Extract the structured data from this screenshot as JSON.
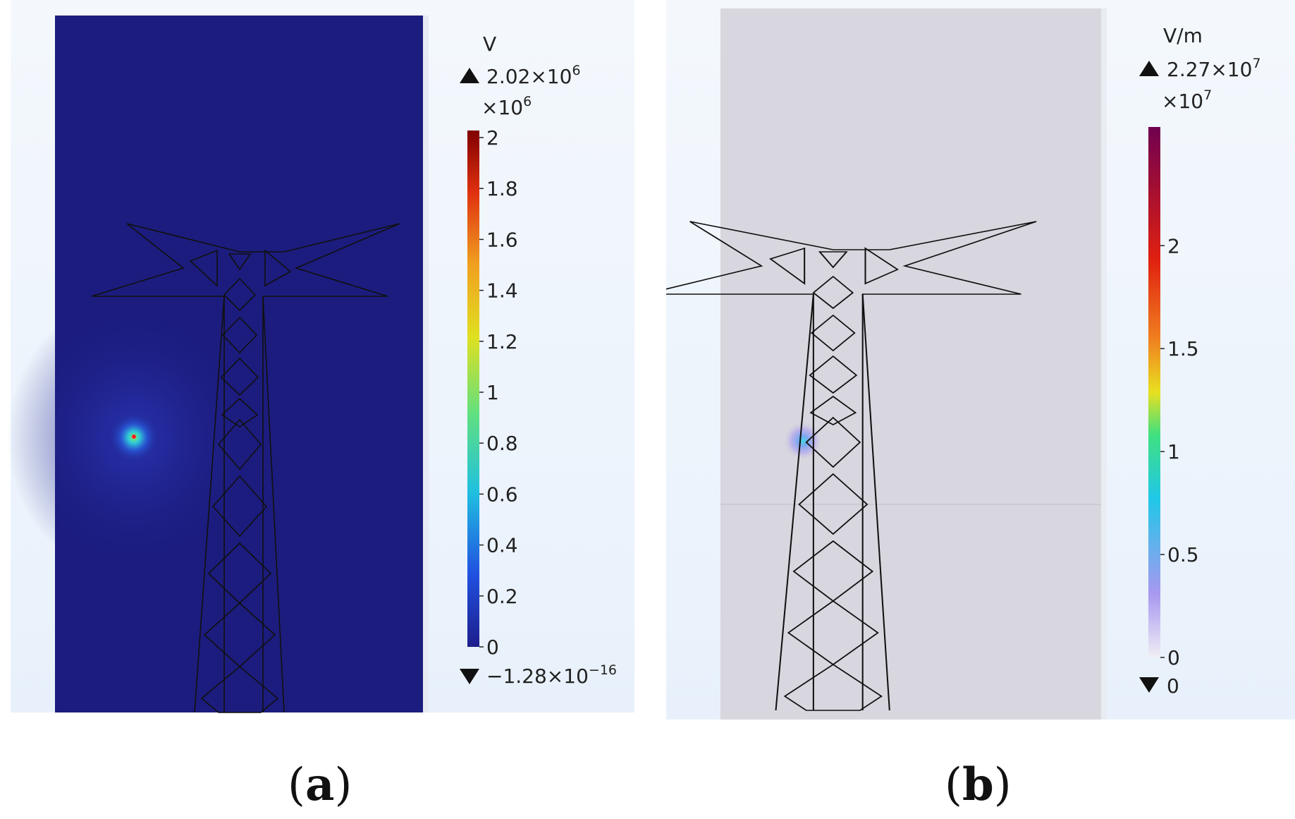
{
  "panels": [
    {
      "id": "a",
      "caption_letter": "a",
      "unit": "V",
      "max_marker": "2.02×10",
      "max_marker_exp": "6",
      "scale_factor": "×10",
      "scale_factor_exp": "6",
      "min_marker": "−1.28×10",
      "min_marker_exp": "−16",
      "field_bg": "#1c1c7e",
      "hotspot_color": "#2fe0d0"
    },
    {
      "id": "b",
      "caption_letter": "b",
      "unit": "V/m",
      "max_marker": "2.27×10",
      "max_marker_exp": "7",
      "scale_factor": "×10",
      "scale_factor_exp": "7",
      "min_marker": "0",
      "min_marker_exp": "",
      "field_bg": "#d8d6de",
      "hotspot_color": "#9a90e0"
    }
  ],
  "chart_data": [
    {
      "type": "heatmap",
      "title": "",
      "quantity_unit": "V",
      "colorscale": [
        "#1e1e8c",
        "#2050e0",
        "#20c0e0",
        "#60e080",
        "#e0e020",
        "#f0a020",
        "#e03010",
        "#800000"
      ],
      "colorbar_range": [
        0,
        2
      ],
      "colorbar_ticks": [
        0,
        0.2,
        0.4,
        0.6,
        0.8,
        1,
        1.2,
        1.4,
        1.6,
        1.8,
        2
      ],
      "colorbar_tick_labels": [
        "0",
        "0.2",
        "0.4",
        "0.6",
        "0.8",
        "1",
        "1.2",
        "1.4",
        "1.6",
        "1.8",
        "2"
      ],
      "colorbar_multiplier": 1000000,
      "max_value": 2020000,
      "min_value": -1.28e-16
    },
    {
      "type": "heatmap",
      "title": "",
      "quantity_unit": "V/m",
      "colorscale": [
        "#f0eef4",
        "#a898f0",
        "#20c8e8",
        "#40e080",
        "#e8e020",
        "#f08020",
        "#e02010",
        "#700050"
      ],
      "colorbar_range": [
        0,
        2.27
      ],
      "colorbar_ticks": [
        0,
        0.5,
        1,
        1.5,
        2
      ],
      "colorbar_tick_labels": [
        "0",
        "0.5",
        "1",
        "1.5",
        "2"
      ],
      "colorbar_multiplier": 10000000,
      "max_value": 22700000,
      "min_value": 0
    }
  ]
}
